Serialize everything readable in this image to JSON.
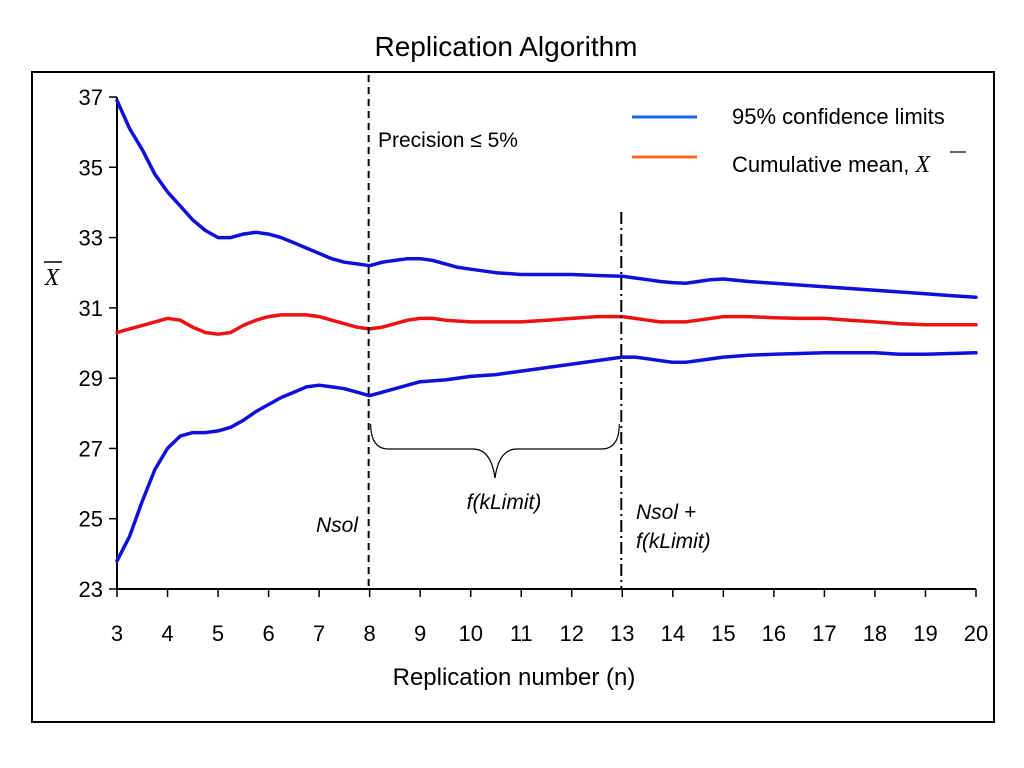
{
  "chart_data": {
    "type": "line",
    "title": "Replication Algorithm",
    "xlabel": "Replication number (n)",
    "ylabel": "X",
    "xlim": [
      3,
      20
    ],
    "ylim": [
      23,
      37
    ],
    "xticks": [
      3,
      4,
      5,
      6,
      7,
      8,
      9,
      10,
      11,
      12,
      13,
      14,
      15,
      16,
      17,
      18,
      19,
      20
    ],
    "yticks": [
      23,
      25,
      27,
      29,
      31,
      33,
      35,
      37
    ],
    "grid": false,
    "legend_position": "top-right",
    "legend": [
      {
        "label": "95% confidence limits",
        "color": "#1a62e8"
      },
      {
        "label": "Cumulative mean, ",
        "symbol": "X",
        "color": "#ff6a1a"
      }
    ],
    "series": [
      {
        "role": "upper-limit",
        "color": "#1010dd",
        "x": [
          3,
          3.25,
          3.5,
          3.75,
          4,
          4.25,
          4.5,
          4.75,
          5,
          5.25,
          5.5,
          5.75,
          6,
          6.25,
          6.5,
          6.75,
          7,
          7.25,
          7.5,
          7.75,
          8,
          8.25,
          8.5,
          8.75,
          9,
          9.25,
          9.5,
          9.75,
          10,
          10.5,
          11,
          11.5,
          12,
          12.5,
          13,
          13.25,
          13.5,
          13.75,
          14,
          14.25,
          14.5,
          14.75,
          15,
          15.5,
          16,
          16.5,
          17,
          17.5,
          18,
          18.5,
          19,
          19.5,
          20
        ],
        "y": [
          36.9,
          36.1,
          35.5,
          34.8,
          34.3,
          33.9,
          33.5,
          33.2,
          33.0,
          33.0,
          33.1,
          33.15,
          33.1,
          33.0,
          32.85,
          32.7,
          32.55,
          32.4,
          32.3,
          32.25,
          32.2,
          32.3,
          32.35,
          32.4,
          32.4,
          32.35,
          32.25,
          32.15,
          32.1,
          32.0,
          31.95,
          31.95,
          31.95,
          31.92,
          31.9,
          31.85,
          31.8,
          31.75,
          31.72,
          31.7,
          31.75,
          31.8,
          31.82,
          31.75,
          31.7,
          31.65,
          31.6,
          31.55,
          31.5,
          31.45,
          31.4,
          31.35,
          31.3
        ]
      },
      {
        "role": "cumulative-mean",
        "color": "#ee1111",
        "x": [
          3,
          3.25,
          3.5,
          3.75,
          4,
          4.25,
          4.5,
          4.75,
          5,
          5.25,
          5.5,
          5.75,
          6,
          6.25,
          6.5,
          6.75,
          7,
          7.25,
          7.5,
          7.75,
          8,
          8.25,
          8.5,
          8.75,
          9,
          9.25,
          9.5,
          10,
          10.5,
          11,
          11.5,
          12,
          12.5,
          13,
          13.25,
          13.5,
          13.75,
          14,
          14.25,
          14.5,
          15,
          15.5,
          16,
          16.5,
          17,
          17.5,
          18,
          18.5,
          19,
          19.5,
          20
        ],
        "y": [
          30.3,
          30.4,
          30.5,
          30.6,
          30.7,
          30.65,
          30.45,
          30.3,
          30.25,
          30.3,
          30.5,
          30.65,
          30.75,
          30.8,
          30.8,
          30.8,
          30.75,
          30.65,
          30.55,
          30.45,
          30.4,
          30.45,
          30.55,
          30.65,
          30.7,
          30.7,
          30.65,
          30.6,
          30.6,
          30.6,
          30.65,
          30.7,
          30.75,
          30.75,
          30.7,
          30.65,
          30.6,
          30.6,
          30.6,
          30.65,
          30.75,
          30.75,
          30.72,
          30.7,
          30.7,
          30.65,
          30.6,
          30.55,
          30.52,
          30.52,
          30.52
        ]
      },
      {
        "role": "lower-limit",
        "color": "#1010dd",
        "x": [
          3,
          3.25,
          3.5,
          3.75,
          4,
          4.25,
          4.5,
          4.75,
          5,
          5.25,
          5.5,
          5.75,
          6,
          6.25,
          6.5,
          6.75,
          7,
          7.25,
          7.5,
          7.75,
          8,
          8.25,
          8.5,
          8.75,
          9,
          9.5,
          10,
          10.5,
          11,
          11.5,
          12,
          12.5,
          13,
          13.25,
          13.5,
          13.75,
          14,
          14.25,
          14.5,
          15,
          15.5,
          16,
          16.5,
          17,
          17.5,
          18,
          18.5,
          19,
          19.5,
          20
        ],
        "y": [
          23.8,
          24.5,
          25.5,
          26.4,
          27.0,
          27.35,
          27.45,
          27.45,
          27.5,
          27.6,
          27.8,
          28.05,
          28.25,
          28.45,
          28.6,
          28.75,
          28.8,
          28.75,
          28.7,
          28.6,
          28.5,
          28.6,
          28.7,
          28.8,
          28.9,
          28.95,
          29.05,
          29.1,
          29.2,
          29.3,
          29.4,
          29.5,
          29.6,
          29.6,
          29.55,
          29.5,
          29.45,
          29.45,
          29.5,
          29.6,
          29.65,
          29.68,
          29.7,
          29.72,
          29.72,
          29.72,
          29.68,
          29.68,
          29.7,
          29.72
        ]
      }
    ],
    "annotations": {
      "nsol_x": 8,
      "nsol_label": "Nsol",
      "limit_x": 13,
      "limit_label_line1": "Nsol +",
      "limit_label_line2": "f(kLimit)",
      "brace_label": "f(kLimit)",
      "precision_text": "Precision ≤ 5%"
    }
  }
}
